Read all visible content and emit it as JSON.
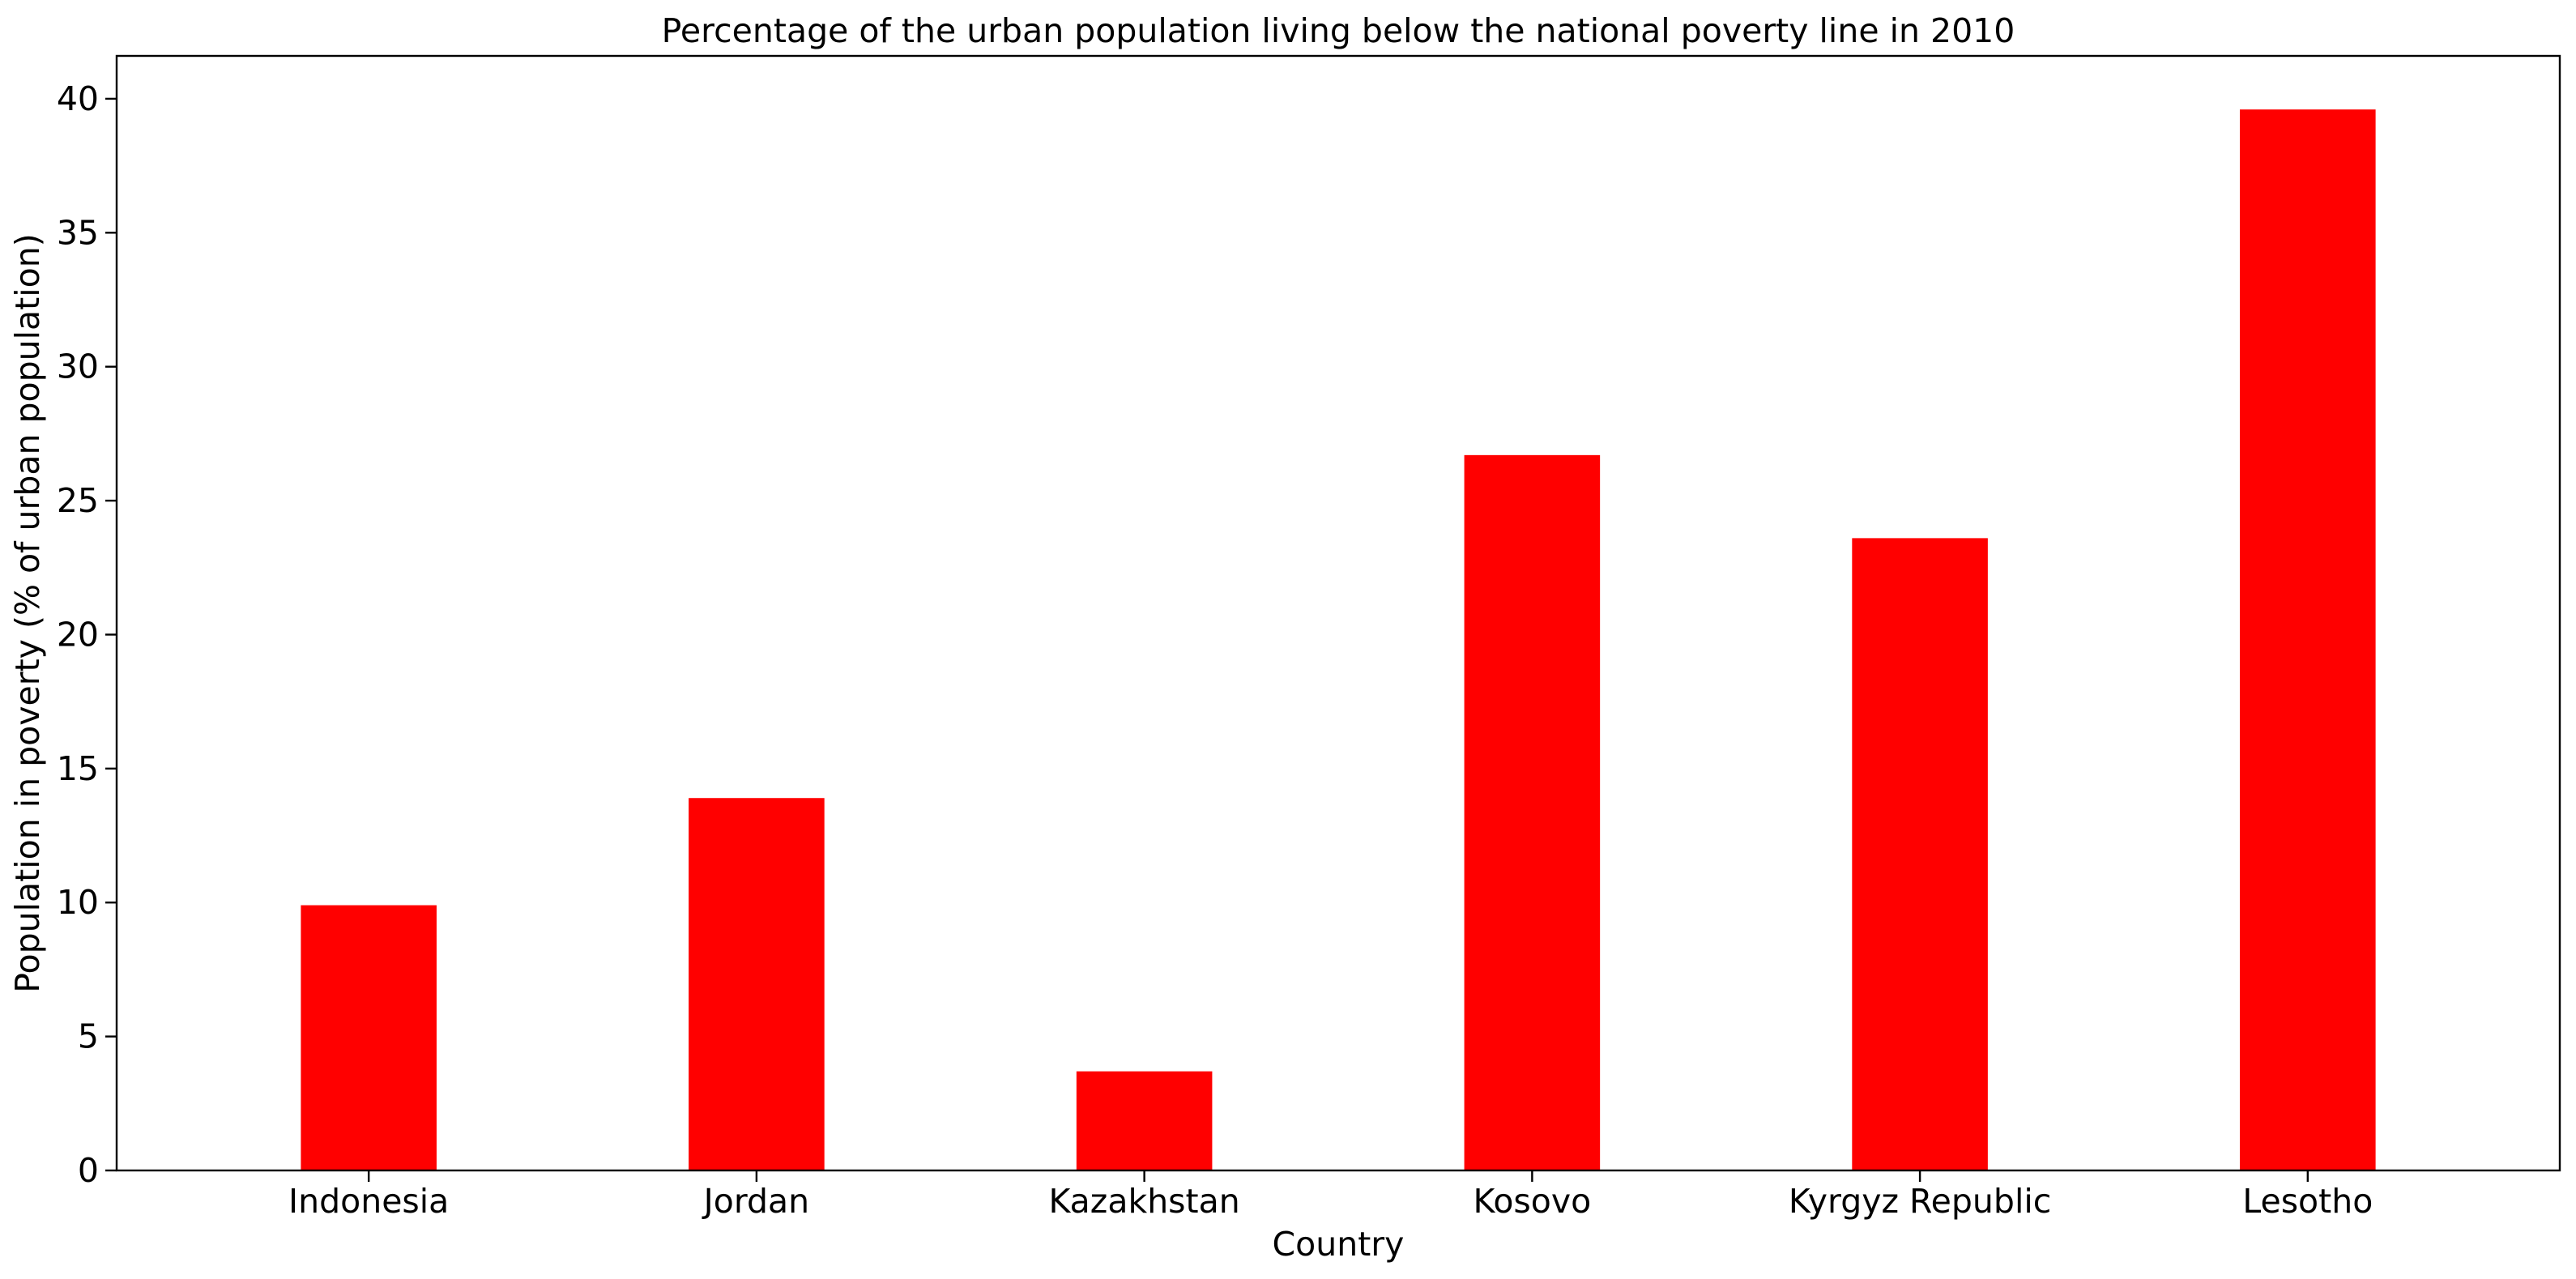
{
  "chart_data": {
    "type": "bar",
    "title": "Percentage of the urban population living below the national poverty line in 2010",
    "xlabel": "Country",
    "ylabel": "Population in poverty (% of urban population)",
    "categories": [
      "Indonesia",
      "Jordan",
      "Kazakhstan",
      "Kosovo",
      "Kyrgyz Republic",
      "Lesotho"
    ],
    "values": [
      9.9,
      13.9,
      3.7,
      26.7,
      23.6,
      39.6
    ],
    "ylim": [
      0,
      41.6
    ],
    "yticks": [
      0,
      5,
      10,
      15,
      20,
      25,
      30,
      35,
      40
    ],
    "bar_color": "#ff0000",
    "grid": false,
    "legend": "none"
  }
}
